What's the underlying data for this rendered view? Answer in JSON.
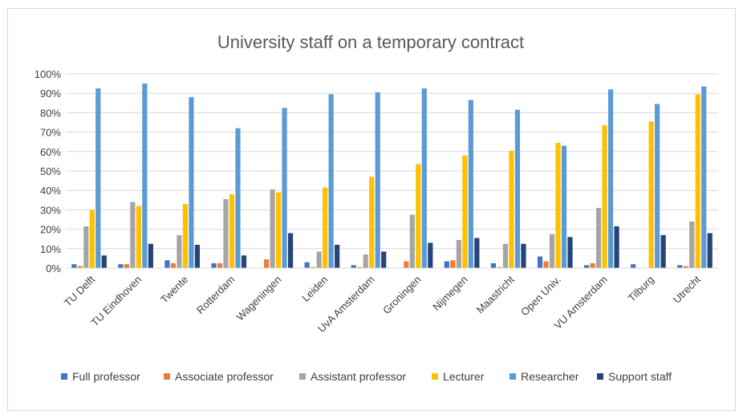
{
  "chart_data": {
    "type": "bar",
    "title": "University staff on a temporary contract",
    "xlabel": "",
    "ylabel": "",
    "ylim": [
      0,
      100
    ],
    "yticks": [
      "0%",
      "10%",
      "20%",
      "30%",
      "40%",
      "50%",
      "60%",
      "70%",
      "80%",
      "90%",
      "100%"
    ],
    "categories": [
      "TU Delft",
      "TU Eindhoven",
      "Twente",
      "Rotterdam",
      "Wageningen",
      "Leiden",
      "UvA Amsterdam",
      "Groningen",
      "Nijmegen",
      "Maastricht",
      "Open Univ.",
      "VU Amsterdam",
      "Tilburg",
      "Utrecht"
    ],
    "series": [
      {
        "name": "Full professor",
        "color": "#4472C4",
        "values": [
          2,
          2,
          4,
          2.5,
          0,
          3,
          1.5,
          0,
          3.5,
          2.5,
          6,
          1.5,
          2,
          1.5
        ]
      },
      {
        "name": "Associate professor",
        "color": "#ED7D31",
        "values": [
          1,
          2,
          2.5,
          2.5,
          4.5,
          0.5,
          0.5,
          3.5,
          4,
          0.5,
          3.5,
          2.5,
          0,
          1
        ]
      },
      {
        "name": "Assistant professor",
        "color": "#A5A5A5",
        "values": [
          21.5,
          34,
          17,
          35.5,
          40.5,
          8.5,
          7,
          27.5,
          14.5,
          12.5,
          17.5,
          31,
          0,
          24
        ]
      },
      {
        "name": "Lecturer",
        "color": "#FFC000",
        "values": [
          30,
          32,
          33,
          38,
          39,
          41.5,
          47,
          53.5,
          58,
          60.5,
          64.5,
          73.5,
          75.5,
          89.5
        ]
      },
      {
        "name": "Researcher",
        "color": "#5B9BD5",
        "values": [
          92.5,
          95,
          88,
          72,
          82.5,
          89.5,
          90.5,
          92.5,
          86.5,
          81.5,
          63,
          92,
          84.5,
          93.5
        ]
      },
      {
        "name": "Support staff",
        "color": "#264478",
        "values": [
          6.5,
          12.5,
          12,
          6.5,
          18,
          12,
          8.5,
          13,
          15.5,
          12.5,
          16,
          21.5,
          17,
          18
        ]
      }
    ],
    "legend_position": "bottom",
    "grid": true
  }
}
